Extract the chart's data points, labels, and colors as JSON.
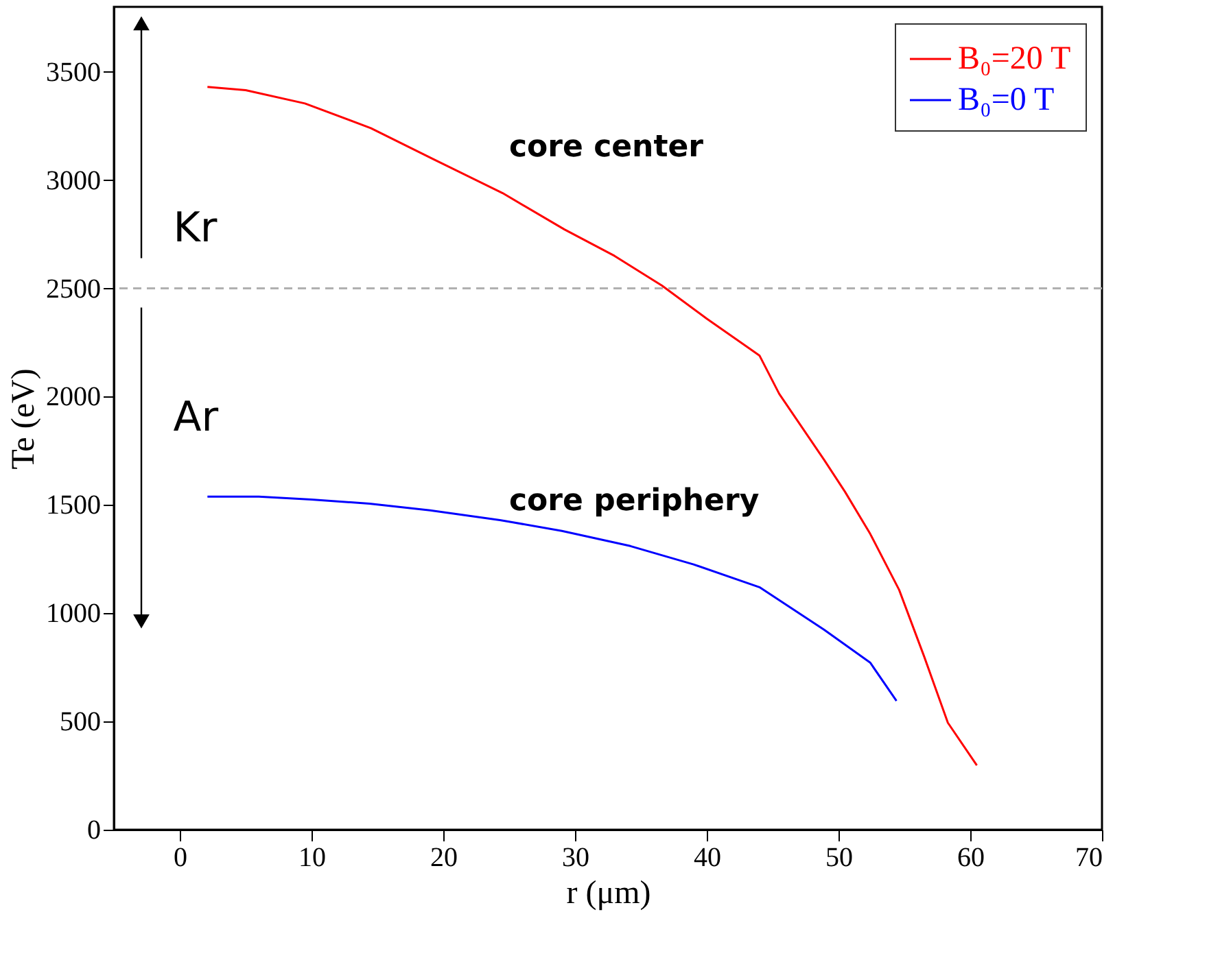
{
  "chart_data": {
    "type": "line",
    "xlabel": "r (μm)",
    "ylabel": "Te (eV)",
    "xlim": [
      -5,
      70
    ],
    "xticks": [
      0,
      10,
      20,
      30,
      40,
      50,
      60,
      70
    ],
    "ylim": [
      0,
      3800
    ],
    "yticks": [
      0,
      500,
      1000,
      1500,
      2000,
      2500,
      3000,
      3500
    ],
    "grid": false,
    "legend": "top right",
    "line_style": "solid",
    "marker": "none",
    "series": [
      {
        "name": "B₀=20 T",
        "color": "#ff0000",
        "x": [
          2.1,
          5,
          9.5,
          14.5,
          19.3,
          24.5,
          29.2,
          33,
          36.6,
          40,
          44,
          45.5,
          48.9,
          50.5,
          52.4,
          54.6,
          56.5,
          58.3,
          60.5
        ],
        "values": [
          3430,
          3415,
          3354,
          3240,
          3095,
          2940,
          2772,
          2650,
          2513,
          2360,
          2190,
          2013,
          1709,
          1560,
          1367,
          1108,
          800,
          494,
          297
        ]
      },
      {
        "name": "B₀=0 T",
        "color": "#0000ff",
        "x": [
          2.1,
          6,
          10,
          14.4,
          19,
          24.3,
          29,
          34.2,
          39,
          44,
          48.9,
          52.4,
          54.4
        ],
        "values": [
          1538,
          1538,
          1525,
          1506,
          1475,
          1430,
          1380,
          1310,
          1225,
          1120,
          924,
          772,
          595
        ]
      }
    ],
    "ref_lines": [
      {
        "axis": "y",
        "value": 2500,
        "color": "#b0b0b0",
        "line_style": "dashed"
      }
    ],
    "annotations": [
      "core center",
      "core periphery",
      "Kr",
      "Ar"
    ]
  }
}
